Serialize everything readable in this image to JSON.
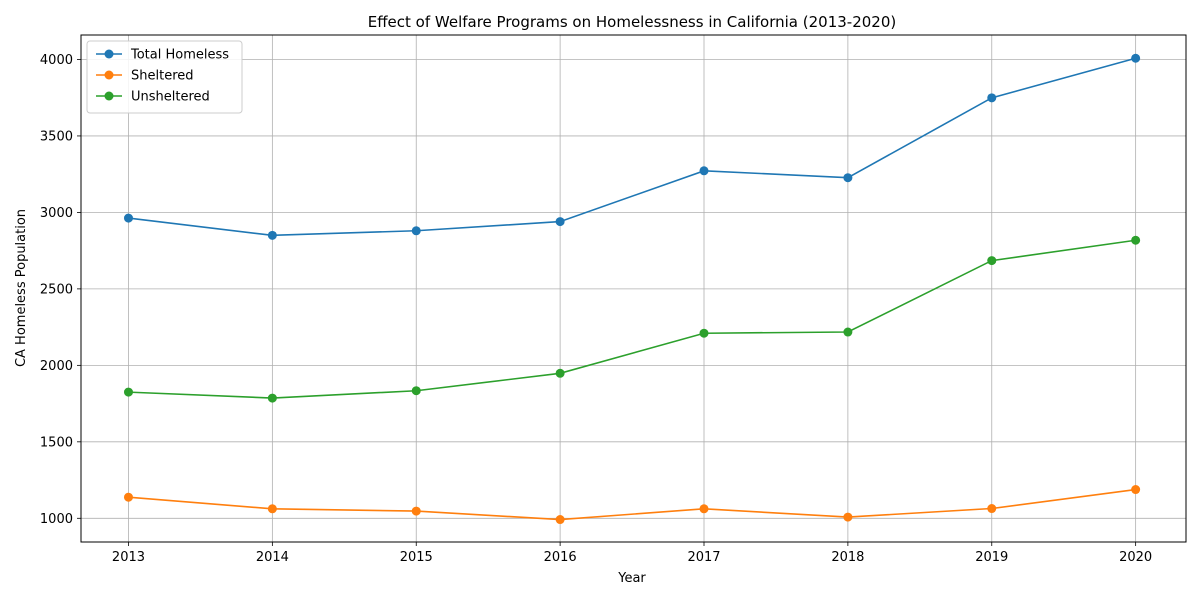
{
  "chart_data": {
    "type": "line",
    "title": "Effect of Welfare Programs on Homelessness in California (2013-2020)",
    "xlabel": "Year",
    "ylabel": "CA Homeless Population",
    "x": [
      2013,
      2014,
      2015,
      2016,
      2017,
      2018,
      2019,
      2020
    ],
    "xlim": [
      2012.67,
      2020.35
    ],
    "ylim": [
      845,
      4160
    ],
    "yticks": [
      1000,
      1500,
      2000,
      2500,
      3000,
      3500,
      4000
    ],
    "grid": true,
    "legend_position": "top-left",
    "series": [
      {
        "name": "Total Homeless",
        "color": "#1f77b4",
        "values": [
          2963,
          2850,
          2880,
          2940,
          3272,
          3227,
          3749,
          4008
        ]
      },
      {
        "name": "Sheltered",
        "color": "#ff7f0e",
        "values": [
          1138,
          1062,
          1047,
          992,
          1062,
          1008,
          1064,
          1188
        ]
      },
      {
        "name": "Unsheltered",
        "color": "#2ca02c",
        "values": [
          1825,
          1786,
          1834,
          1948,
          2210,
          2218,
          2685,
          2818
        ]
      }
    ]
  }
}
